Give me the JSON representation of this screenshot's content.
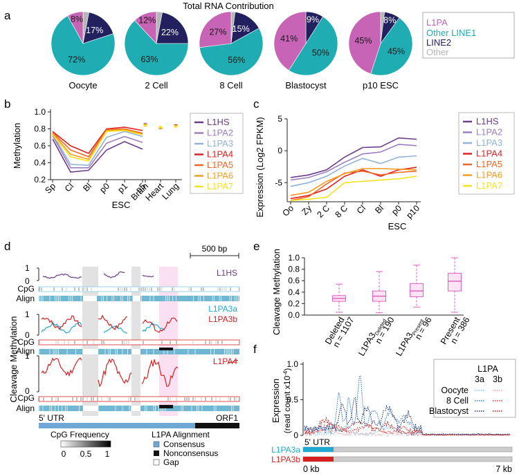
{
  "panels": {
    "a": {
      "letter": "a",
      "title": "Total RNA Contribution",
      "legend": [
        "L1PA",
        "Other LINE1",
        "LINE2",
        "Other"
      ],
      "colors": {
        "L1PA": "#c764b6",
        "Other LINE1": "#1fadb3",
        "LINE2": "#22205f",
        "Other": "#b5b5b5"
      },
      "chart_data": {
        "type": "pie",
        "title": "Total RNA Contribution",
        "legend_position": "right",
        "pies": [
          {
            "name": "Oocyte",
            "slices": [
              {
                "label": "L1PA",
                "value": 8,
                "text": "8%"
              },
              {
                "label": "Other LINE1",
                "value": 72,
                "text": "72%"
              },
              {
                "label": "LINE2",
                "value": 17,
                "text": "17%"
              },
              {
                "label": "Other",
                "value": 3,
                "text": ""
              }
            ]
          },
          {
            "name": "2 Cell",
            "slices": [
              {
                "label": "L1PA",
                "value": 12,
                "text": "12%"
              },
              {
                "label": "Other LINE1",
                "value": 63,
                "text": "63%"
              },
              {
                "label": "LINE2",
                "value": 22,
                "text": "22%"
              },
              {
                "label": "Other",
                "value": 3,
                "text": ""
              }
            ]
          },
          {
            "name": "8 Cell",
            "slices": [
              {
                "label": "L1PA",
                "value": 27,
                "text": "27%"
              },
              {
                "label": "Other LINE1",
                "value": 56,
                "text": "56%"
              },
              {
                "label": "LINE2",
                "value": 15,
                "text": "15%"
              },
              {
                "label": "Other",
                "value": 2,
                "text": ""
              }
            ]
          },
          {
            "name": "Blastocyst",
            "slices": [
              {
                "label": "L1PA",
                "value": 41,
                "text": "41%"
              },
              {
                "label": "Other LINE1",
                "value": 50,
                "text": "50%"
              },
              {
                "label": "LINE2",
                "value": 9,
                "text": "9%"
              },
              {
                "label": "Other",
                "value": 0,
                "text": ""
              }
            ]
          },
          {
            "name": "p10 ESC",
            "slices": [
              {
                "label": "L1PA",
                "value": 45,
                "text": "45%"
              },
              {
                "label": "Other LINE1",
                "value": 45,
                "text": "45%"
              },
              {
                "label": "LINE2",
                "value": 8,
                "text": "8%"
              },
              {
                "label": "Other",
                "value": 2,
                "text": ""
              }
            ]
          }
        ]
      }
    },
    "b": {
      "letter": "b",
      "chart_data": {
        "type": "line",
        "ylabel": "Methylation",
        "xgroup_label": "ESC",
        "categories": [
          "Sp",
          "Cl",
          "Bl",
          "p0",
          "p1",
          "p5"
        ],
        "tissues": [
          "Brain",
          "Heart",
          "Lung"
        ],
        "ylim": [
          0.2,
          1.0
        ],
        "yticks": [
          0.2,
          0.4,
          0.6,
          0.8,
          1.0
        ],
        "series": [
          {
            "name": "L1HS",
            "color": "#6c3a8c",
            "values": [
              0.68,
              0.29,
              0.31,
              0.55,
              0.65,
              0.56
            ],
            "tissue": [
              0.84,
              0.81,
              0.83
            ]
          },
          {
            "name": "L1PA2",
            "color": "#9b7fc0",
            "values": [
              0.72,
              0.34,
              0.34,
              0.63,
              0.71,
              0.64
            ],
            "tissue": [
              0.85,
              0.82,
              0.83
            ]
          },
          {
            "name": "L1PA3",
            "color": "#8fb2da",
            "values": [
              0.74,
              0.38,
              0.37,
              0.7,
              0.77,
              0.71
            ],
            "tissue": [
              0.86,
              0.82,
              0.84
            ]
          },
          {
            "name": "L1PA4",
            "color": "#e02020",
            "values": [
              0.77,
              0.6,
              0.51,
              0.8,
              0.82,
              0.78
            ],
            "tissue": [
              0.85,
              0.82,
              0.84
            ]
          },
          {
            "name": "L1PA5",
            "color": "#f26522",
            "values": [
              0.76,
              0.55,
              0.47,
              0.79,
              0.8,
              0.75
            ],
            "tissue": [
              0.85,
              0.82,
              0.83
            ]
          },
          {
            "name": "L1PA6",
            "color": "#f59c1a",
            "values": [
              0.75,
              0.5,
              0.44,
              0.78,
              0.79,
              0.74
            ],
            "tissue": [
              0.84,
              0.81,
              0.83
            ]
          },
          {
            "name": "L1PA7",
            "color": "#f7e21d",
            "values": [
              0.73,
              0.47,
              0.42,
              0.77,
              0.78,
              0.73
            ],
            "tissue": [
              0.84,
              0.82,
              0.83
            ]
          }
        ]
      }
    },
    "c": {
      "letter": "c",
      "chart_data": {
        "type": "line",
        "ylabel": "Expression (Log2 FPKM)",
        "xgroup_label": "ESC",
        "categories": [
          "Oo",
          "Zy",
          "2 C",
          "8 C",
          "Cl",
          "Bl",
          "p0",
          "p10"
        ],
        "ylim": [
          -8,
          5
        ],
        "yticks": [
          -5,
          0,
          5
        ],
        "series": [
          {
            "name": "L1HS",
            "color": "#6c3a8c",
            "values": [
              -4.2,
              -3.8,
              -3.0,
              -1.0,
              0.5,
              0.6,
              2.0,
              1.8
            ]
          },
          {
            "name": "L1PA2",
            "color": "#9b7fc0",
            "values": [
              -4.6,
              -4.2,
              -3.3,
              -1.8,
              -0.5,
              -0.2,
              1.0,
              0.8
            ]
          },
          {
            "name": "L1PA3",
            "color": "#8fb2da",
            "values": [
              -5.6,
              -5.0,
              -4.0,
              -2.4,
              -1.2,
              -2.0,
              -1.0,
              -0.8
            ]
          },
          {
            "name": "L1PA4",
            "color": "#e02020",
            "values": [
              -7.5,
              -7.0,
              -6.0,
              -4.0,
              -3.0,
              -4.0,
              -3.0,
              -2.6
            ]
          },
          {
            "name": "L1PA5",
            "color": "#f26522",
            "values": [
              -7.8,
              -7.2,
              -5.2,
              -3.5,
              -3.2,
              -3.8,
              -3.4,
              -3.2
            ]
          },
          {
            "name": "L1PA6",
            "color": "#f59c1a",
            "values": [
              -7.0,
              -6.5,
              -4.8,
              -3.6,
              -2.8,
              -2.8,
              -2.9,
              -3.0
            ]
          },
          {
            "name": "L1PA7",
            "color": "#f7e21d",
            "values": [
              -7.8,
              -7.6,
              -7.3,
              -5.0,
              -4.8,
              -4.6,
              -4.4,
              -4.0
            ]
          }
        ]
      }
    },
    "d": {
      "letter": "d",
      "ylabel": "Cleavage Methylation",
      "scalebar": "500 bp",
      "tracks": [
        {
          "name": "L1HS",
          "color": "#6c3a8c"
        },
        {
          "name": "L1PA3a",
          "color": "#1fa8d0"
        },
        {
          "name": "L1PA3b",
          "color": "#d42020"
        },
        {
          "name": "L1PA4",
          "color": "#d42020"
        }
      ],
      "row_labels": {
        "cpg": "CpG",
        "align": "Align"
      },
      "ytick_one": "1",
      "ytick_zero": "0",
      "utr": "5' UTR",
      "orf": "ORF1",
      "cpg_freq_title": "CpG Frequency",
      "cpg_freq_ticks": [
        "0",
        "0.5",
        "1"
      ],
      "align_legend_title": "L1PA Alignment",
      "align_legend": [
        "Consensus",
        "Nonconsensus",
        "Gap"
      ],
      "align_colors": {
        "Consensus": "#6fa8d6",
        "Nonconsensus": "#111111",
        "Gap": "#ffffff"
      }
    },
    "e": {
      "letter": "e",
      "chart_data": {
        "type": "box",
        "ylabel": "Cleavage Methylation",
        "ylim": [
          0,
          1.0
        ],
        "yticks": [
          0.0,
          0.2,
          0.4,
          0.6,
          0.8,
          1.0
        ],
        "color": "#e060c0",
        "groups": [
          {
            "label": "Deleted",
            "sub": "",
            "n": "n = 1107",
            "whislo": 0.05,
            "q1": 0.24,
            "median": 0.29,
            "q3": 0.34,
            "whishi": 0.54
          },
          {
            "label": "L1PA3",
            "sub": "Deleted",
            "n": "n = 190",
            "whislo": 0.04,
            "q1": 0.24,
            "median": 0.33,
            "q3": 0.42,
            "whishi": 0.76
          },
          {
            "label": "L1PA3",
            "sub": "Present",
            "n": "n = 96",
            "whislo": 0.14,
            "q1": 0.32,
            "median": 0.42,
            "q3": 0.55,
            "whishi": 0.87
          },
          {
            "label": "Present",
            "sub": "",
            "n": "n = 386",
            "whislo": 0.05,
            "q1": 0.42,
            "median": 0.59,
            "q3": 0.73,
            "whishi": 1.0
          }
        ]
      }
    },
    "f": {
      "letter": "f",
      "chart_data": {
        "type": "line",
        "ylabel": "Expression",
        "ylabel2": "(read count x10",
        "ylabel2_sup": "-4",
        "ylabel2_end": ")",
        "ylim": [
          0,
          1.0
        ],
        "yticks": [
          0,
          0.5,
          1.0
        ],
        "x_start": "0 kb",
        "x_end": "7 kb",
        "utr": "5' UTR",
        "legend_title": "L1PA",
        "legend_cols": [
          "3a",
          "3b"
        ],
        "series": [
          {
            "name": "Oocyte",
            "color_a": "#7fc6ea",
            "color_b": "#f3a0a0"
          },
          {
            "name": "8 Cell",
            "color_a": "#2f7fc8",
            "color_b": "#e83a3a"
          },
          {
            "name": "Blastocyst",
            "color_a": "#1d2f7a",
            "color_b": "#b31515"
          }
        ],
        "tracks": [
          {
            "name": "L1PA3a",
            "color": "#1fa8d0"
          },
          {
            "name": "L1PA3b",
            "color": "#d42020"
          }
        ]
      }
    }
  }
}
